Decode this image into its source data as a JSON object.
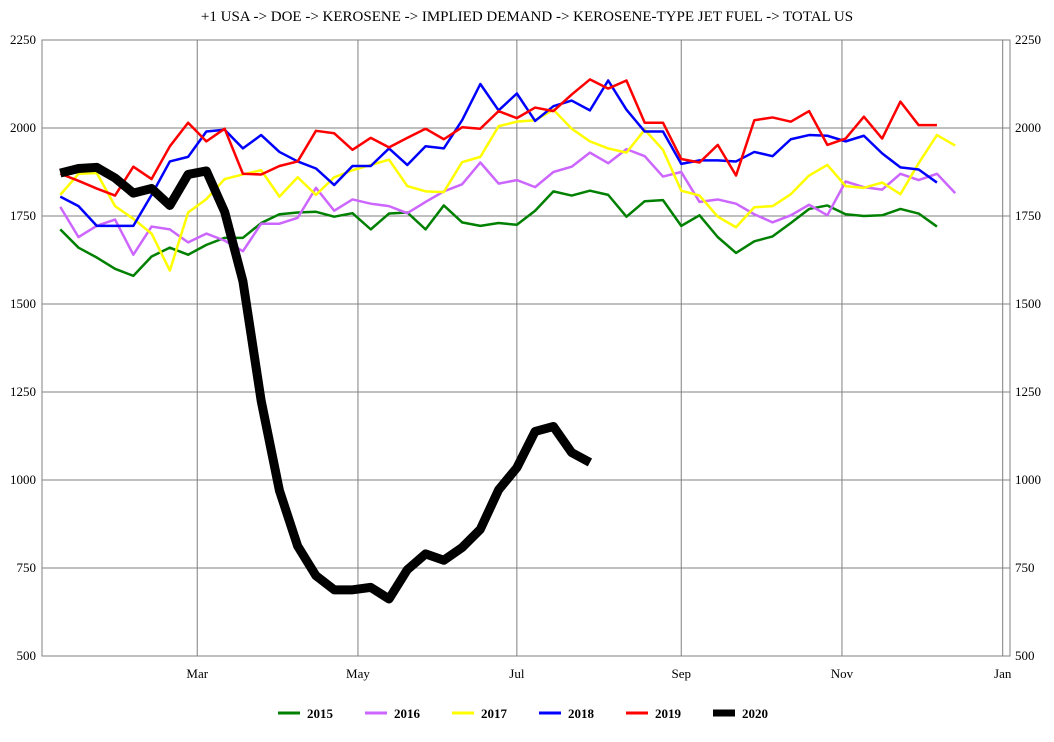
{
  "chart_data": {
    "type": "line",
    "title": "+1 USA -> DOE -> KEROSENE -> IMPLIED DEMAND -> KEROSENE-TYPE JET FUEL -> TOTAL US",
    "xlabel": "",
    "ylabel": "",
    "x_tick_labels": [
      "Mar",
      "May",
      "Jul",
      "Sep",
      "Nov",
      "Jan"
    ],
    "x_tick_weeks": [
      8.5,
      17.3,
      26.0,
      35.0,
      43.8,
      52.6
    ],
    "y_ticks": [
      500,
      750,
      1000,
      1250,
      1500,
      1750,
      2000,
      2250
    ],
    "ylim": [
      500,
      2250
    ],
    "xlim": [
      0,
      53
    ],
    "grid": true,
    "legend_position": "bottom",
    "series": [
      {
        "name": "2015",
        "color": "#008000",
        "values": [
          1712,
          1660,
          1632,
          1600,
          1580,
          1635,
          1660,
          1640,
          1668,
          1688,
          1688,
          1730,
          1755,
          1760,
          1762,
          1748,
          1758,
          1712,
          1757,
          1760,
          1712,
          1780,
          1732,
          1722,
          1730,
          1725,
          1765,
          1820,
          1808,
          1822,
          1810,
          1748,
          1792,
          1795,
          1722,
          1752,
          1690,
          1645,
          1678,
          1692,
          1730,
          1770,
          1780,
          1755,
          1750,
          1752,
          1770,
          1757,
          1720
        ]
      },
      {
        "name": "2016",
        "color": "#CC66FF",
        "values": [
          1776,
          1690,
          1722,
          1740,
          1640,
          1720,
          1712,
          1675,
          1700,
          1680,
          1650,
          1728,
          1728,
          1745,
          1830,
          1765,
          1797,
          1785,
          1778,
          1758,
          1790,
          1820,
          1840,
          1902,
          1842,
          1852,
          1832,
          1875,
          1890,
          1930,
          1900,
          1940,
          1920,
          1862,
          1875,
          1790,
          1797,
          1785,
          1755,
          1732,
          1752,
          1782,
          1752,
          1848,
          1832,
          1825,
          1870,
          1852,
          1870,
          1815
        ]
      },
      {
        "name": "2017",
        "color": "#FFFF00",
        "values": [
          1810,
          1870,
          1872,
          1778,
          1742,
          1700,
          1595,
          1760,
          1798,
          1855,
          1868,
          1880,
          1805,
          1860,
          1810,
          1860,
          1880,
          1895,
          1910,
          1835,
          1820,
          1818,
          1903,
          1918,
          2005,
          2018,
          2022,
          2052,
          1998,
          1962,
          1942,
          1930,
          1995,
          1938,
          1822,
          1808,
          1748,
          1718,
          1775,
          1778,
          1812,
          1865,
          1895,
          1835,
          1830,
          1845,
          1812,
          1900,
          1980,
          1950
        ]
      },
      {
        "name": "2018",
        "color": "#0000FF",
        "values": [
          1805,
          1778,
          1722,
          1722,
          1722,
          1810,
          1905,
          1918,
          1990,
          1995,
          1942,
          1980,
          1932,
          1905,
          1885,
          1838,
          1892,
          1892,
          1942,
          1895,
          1948,
          1942,
          2022,
          2125,
          2050,
          2098,
          2020,
          2062,
          2078,
          2050,
          2135,
          2052,
          1990,
          1990,
          1898,
          1908,
          1908,
          1905,
          1932,
          1920,
          1968,
          1980,
          1978,
          1962,
          1978,
          1928,
          1888,
          1882,
          1845
        ]
      },
      {
        "name": "2019",
        "color": "#FF0000",
        "values": [
          1870,
          1850,
          1828,
          1808,
          1890,
          1855,
          1948,
          2015,
          1962,
          1998,
          1870,
          1868,
          1892,
          1905,
          1992,
          1985,
          1938,
          1972,
          1945,
          1972,
          1998,
          1968,
          2002,
          1998,
          2048,
          2028,
          2058,
          2048,
          2095,
          2138,
          2112,
          2135,
          2015,
          2015,
          1912,
          1902,
          1952,
          1865,
          2022,
          2030,
          2018,
          2048,
          1952,
          1970,
          2032,
          1970,
          2075,
          2008,
          2008
        ]
      },
      {
        "name": "2020",
        "color": "#000000",
        "values": [
          1872,
          1885,
          1888,
          1858,
          1815,
          1828,
          1780,
          1868,
          1878,
          1762,
          1565,
          1225,
          970,
          812,
          728,
          688,
          688,
          695,
          662,
          745,
          790,
          772,
          808,
          860,
          972,
          1035,
          1138,
          1152,
          1078,
          1050
        ]
      }
    ]
  }
}
